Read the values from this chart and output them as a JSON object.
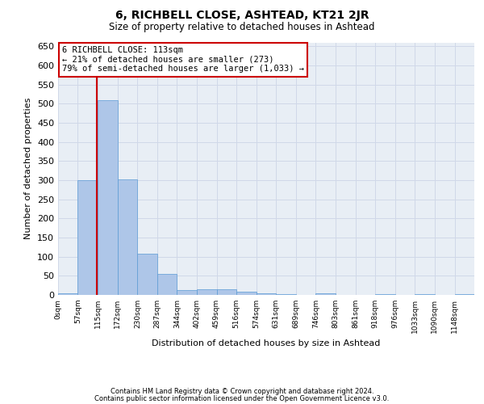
{
  "title": "6, RICHBELL CLOSE, ASHTEAD, KT21 2JR",
  "subtitle": "Size of property relative to detached houses in Ashtead",
  "xlabel": "Distribution of detached houses by size in Ashtead",
  "ylabel": "Number of detached properties",
  "footnote1": "Contains HM Land Registry data © Crown copyright and database right 2024.",
  "footnote2": "Contains public sector information licensed under the Open Government Licence v3.0.",
  "bin_labels": [
    "0sqm",
    "57sqm",
    "115sqm",
    "172sqm",
    "230sqm",
    "287sqm",
    "344sqm",
    "402sqm",
    "459sqm",
    "516sqm",
    "574sqm",
    "631sqm",
    "689sqm",
    "746sqm",
    "803sqm",
    "861sqm",
    "918sqm",
    "976sqm",
    "1033sqm",
    "1090sqm",
    "1148sqm"
  ],
  "bar_values": [
    5,
    299,
    510,
    302,
    108,
    55,
    13,
    15,
    14,
    9,
    5,
    2,
    0,
    4,
    0,
    0,
    3,
    0,
    3,
    0,
    3
  ],
  "bar_color": "#aec6e8",
  "bar_edge_color": "#5b9bd5",
  "grid_color": "#d0d8e8",
  "annotation_text": "6 RICHBELL CLOSE: 113sqm\n← 21% of detached houses are smaller (273)\n79% of semi-detached houses are larger (1,033) →",
  "annotation_box_color": "#ffffff",
  "annotation_box_edge": "#cc0000",
  "vline_color": "#cc0000",
  "ylim": [
    0,
    660
  ],
  "yticks": [
    0,
    50,
    100,
    150,
    200,
    250,
    300,
    350,
    400,
    450,
    500,
    550,
    600,
    650
  ],
  "bin_width": 57,
  "property_size": 113,
  "background_color": "#e8eef5"
}
